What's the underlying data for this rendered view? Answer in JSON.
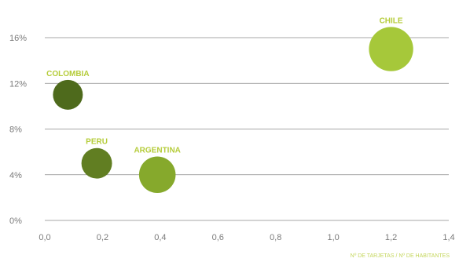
{
  "chart_data": {
    "type": "scatter",
    "title": "",
    "xlabel": "Nº DE TARJETAS / Nº DE HABITANTES",
    "ylabel": "",
    "xlim": [
      0.0,
      1.4
    ],
    "ylim": [
      0,
      16
    ],
    "x_ticks": [
      {
        "value": 0.0,
        "label": "0,0"
      },
      {
        "value": 0.2,
        "label": "0,2"
      },
      {
        "value": 0.4,
        "label": "0,4"
      },
      {
        "value": 0.6,
        "label": "0,6"
      },
      {
        "value": 0.8,
        "label": "0,8"
      },
      {
        "value": 1.0,
        "label": "1,0"
      },
      {
        "value": 1.2,
        "label": "1,2"
      },
      {
        "value": 1.4,
        "label": "1,4"
      }
    ],
    "y_ticks": [
      {
        "value": 0,
        "label": "0%"
      },
      {
        "value": 4,
        "label": "4%"
      },
      {
        "value": 8,
        "label": "8%"
      },
      {
        "value": 12,
        "label": "12%"
      },
      {
        "value": 16,
        "label": "16%"
      }
    ],
    "grid": "horizontal",
    "legend": "none",
    "points": [
      {
        "label": "COLOMBIA",
        "x": 0.08,
        "y": 11.0,
        "size": 1.0,
        "color": "#4e6a1c"
      },
      {
        "label": "PERU",
        "x": 0.18,
        "y": 5.0,
        "size": 1.05,
        "color": "#617e22"
      },
      {
        "label": "ARGENTINA",
        "x": 0.39,
        "y": 4.0,
        "size": 1.5,
        "color": "#86a92c"
      },
      {
        "label": "CHILE",
        "x": 1.2,
        "y": 15.0,
        "size": 2.2,
        "color": "#a6c83a"
      }
    ]
  }
}
